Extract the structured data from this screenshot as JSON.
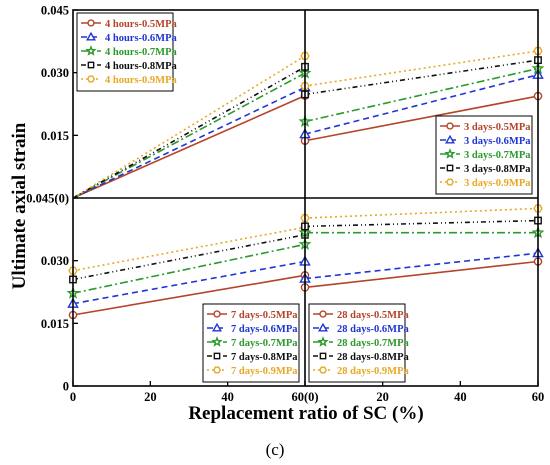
{
  "figure": {
    "ylabel": "Ultimate axial strain",
    "xlabel": "Replacement ratio of SC (%)",
    "caption": "(c)"
  },
  "styles": [
    {
      "color": "#b5442a",
      "marker": "circle",
      "dash": ""
    },
    {
      "color": "#1f35d6",
      "marker": "triangle",
      "dash": "6,4"
    },
    {
      "color": "#2b9a2b",
      "marker": "star",
      "dash": "8,3,2,3"
    },
    {
      "color": "#111111",
      "marker": "square",
      "dash": "5,3,1,3,1,3"
    },
    {
      "color": "#e8a823",
      "marker": "hexagon",
      "dash": "2,3"
    }
  ],
  "chart_data": [
    {
      "type": "line",
      "panel": "top-left",
      "x": [
        0,
        60
      ],
      "xlim": [
        0,
        60
      ],
      "ylim": [
        0,
        0.045
      ],
      "legend_position": "top-left",
      "series": [
        {
          "name": "4 hours-0.5MPa",
          "values": [
            0,
            0.0245
          ]
        },
        {
          "name": "4 hours-0.6MPa",
          "values": [
            0,
            0.0265
          ]
        },
        {
          "name": "4 hours-0.7MPa",
          "values": [
            0,
            0.0299
          ]
        },
        {
          "name": "4 hours-0.8MPa",
          "values": [
            0,
            0.0314
          ]
        },
        {
          "name": "4 hours-0.9MPa",
          "values": [
            0,
            0.034
          ]
        }
      ]
    },
    {
      "type": "line",
      "panel": "top-right",
      "x": [
        0,
        60
      ],
      "xlim": [
        0,
        60
      ],
      "ylim": [
        0,
        0.045
      ],
      "legend_position": "bottom-right",
      "series": [
        {
          "name": "3 days-0.5MPa",
          "values": [
            0.0137,
            0.0244
          ]
        },
        {
          "name": "3 days-0.6MPa",
          "values": [
            0.0153,
            0.0295
          ]
        },
        {
          "name": "3 days-0.7MPa",
          "values": [
            0.0183,
            0.031
          ]
        },
        {
          "name": "3 days-0.8MPa",
          "values": [
            0.0248,
            0.033
          ]
        },
        {
          "name": "3 days-0.9MPa",
          "values": [
            0.0268,
            0.0352
          ]
        }
      ]
    },
    {
      "type": "line",
      "panel": "bottom-left",
      "x": [
        0,
        60
      ],
      "xlim": [
        0,
        60
      ],
      "ylim": [
        0,
        0.045
      ],
      "legend_position": "bottom-right",
      "series": [
        {
          "name": "7 days-0.5MPa",
          "values": [
            0.017,
            0.0265
          ]
        },
        {
          "name": "7 days-0.6MPa",
          "values": [
            0.0197,
            0.0298
          ]
        },
        {
          "name": "7 days-0.7MPa",
          "values": [
            0.0222,
            0.0339
          ]
        },
        {
          "name": "7 days-0.8MPa",
          "values": [
            0.0255,
            0.0362
          ]
        },
        {
          "name": "7 days-0.9MPa",
          "values": [
            0.0276,
            0.038
          ]
        }
      ]
    },
    {
      "type": "line",
      "panel": "bottom-right",
      "x": [
        0,
        60
      ],
      "xlim": [
        0,
        60
      ],
      "ylim": [
        0,
        0.045
      ],
      "legend_position": "bottom-left",
      "series": [
        {
          "name": "28 days-0.5MPa",
          "values": [
            0.0236,
            0.0298
          ]
        },
        {
          "name": "28 days-0.6MPa",
          "values": [
            0.0257,
            0.0318
          ]
        },
        {
          "name": "28 days-0.7MPa",
          "values": [
            0.0367,
            0.0367
          ]
        },
        {
          "name": "28 days-0.8MPa",
          "values": [
            0.0382,
            0.0396
          ]
        },
        {
          "name": "28 days-0.9MPa",
          "values": [
            0.0402,
            0.0425
          ]
        }
      ]
    }
  ],
  "axes": {
    "top_yticks": [
      "0.045",
      "0.030",
      "0.015"
    ],
    "bottom_yticks": [
      "0.045(0)",
      "0.030",
      "0.015",
      "0"
    ],
    "xticks": [
      "0",
      "20",
      "40",
      "60(0)",
      "20",
      "40",
      "60"
    ]
  }
}
